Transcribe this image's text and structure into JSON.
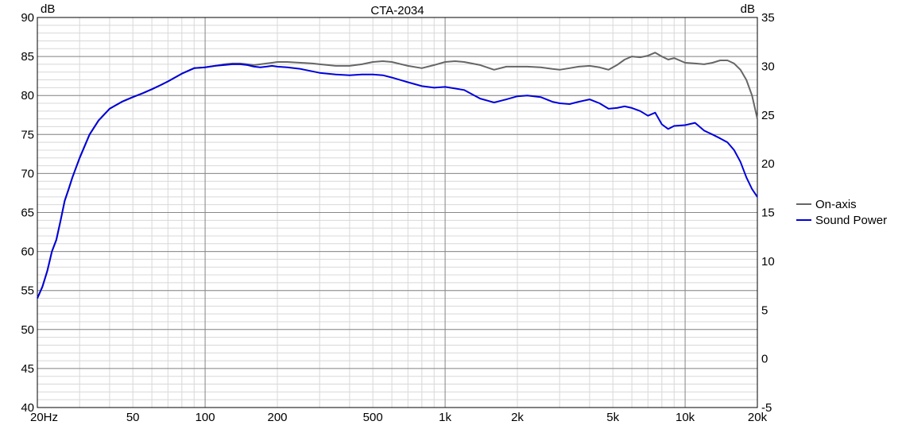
{
  "chart_data": {
    "type": "line",
    "title": "CTA-2034",
    "y_left_unit": "dB",
    "y_right_unit": "dB",
    "x_scale": "log",
    "xlim": [
      20,
      20000
    ],
    "ylim_left": [
      40,
      90
    ],
    "ylim_right": [
      -5,
      35
    ],
    "x_ticks": [
      {
        "value": 20,
        "label": "20Hz"
      },
      {
        "value": 50,
        "label": "50"
      },
      {
        "value": 100,
        "label": "100"
      },
      {
        "value": 200,
        "label": "200"
      },
      {
        "value": 500,
        "label": "500"
      },
      {
        "value": 1000,
        "label": "1k"
      },
      {
        "value": 2000,
        "label": "2k"
      },
      {
        "value": 5000,
        "label": "5k"
      },
      {
        "value": 10000,
        "label": "10k"
      },
      {
        "value": 20000,
        "label": "20k"
      }
    ],
    "y_left_ticks": [
      90,
      85,
      80,
      75,
      70,
      65,
      60,
      55,
      50,
      45,
      40
    ],
    "y_right_ticks": [
      35,
      30,
      25,
      20,
      15,
      10,
      5,
      0,
      -5
    ],
    "grid": true,
    "legend_position": "right",
    "series": [
      {
        "name": "On-axis",
        "color": "#666666",
        "x": [
          20,
          21,
          22,
          23,
          24,
          25,
          26,
          27,
          28,
          30,
          33,
          36,
          40,
          45,
          50,
          55,
          60,
          65,
          70,
          80,
          90,
          100,
          110,
          120,
          130,
          140,
          150,
          160,
          170,
          180,
          190,
          200,
          220,
          250,
          280,
          300,
          350,
          400,
          450,
          500,
          550,
          600,
          700,
          800,
          900,
          1000,
          1100,
          1200,
          1400,
          1600,
          1800,
          2000,
          2200,
          2500,
          2800,
          3000,
          3300,
          3600,
          4000,
          4400,
          4800,
          5200,
          5600,
          6000,
          6500,
          7000,
          7500,
          8000,
          8500,
          9000,
          10000,
          11000,
          12000,
          13000,
          14000,
          15000,
          16000,
          17000,
          18000,
          19000,
          20000
        ],
        "y": [
          54.0,
          55.5,
          57.5,
          60.0,
          61.5,
          64.0,
          66.5,
          68.0,
          69.5,
          72.0,
          75.0,
          76.8,
          78.3,
          79.2,
          79.8,
          80.3,
          80.8,
          81.3,
          81.8,
          82.8,
          83.5,
          83.6,
          83.8,
          84.0,
          84.1,
          84.1,
          84.0,
          83.9,
          84.0,
          84.1,
          84.2,
          84.3,
          84.3,
          84.2,
          84.1,
          84.0,
          83.8,
          83.8,
          84.0,
          84.3,
          84.4,
          84.3,
          83.8,
          83.5,
          83.9,
          84.3,
          84.4,
          84.3,
          83.9,
          83.3,
          83.7,
          83.7,
          83.7,
          83.6,
          83.4,
          83.3,
          83.5,
          83.7,
          83.8,
          83.6,
          83.3,
          83.9,
          84.6,
          85.0,
          84.9,
          85.1,
          85.5,
          85.0,
          84.6,
          84.8,
          84.2,
          84.1,
          84.0,
          84.2,
          84.5,
          84.5,
          84.1,
          83.3,
          82.0,
          80.0,
          77.0
        ]
      },
      {
        "name": "Sound Power",
        "color": "#0000dd",
        "x": [
          20,
          21,
          22,
          23,
          24,
          25,
          26,
          27,
          28,
          30,
          33,
          36,
          40,
          45,
          50,
          55,
          60,
          65,
          70,
          80,
          90,
          100,
          110,
          120,
          130,
          140,
          150,
          160,
          170,
          180,
          190,
          200,
          220,
          250,
          280,
          300,
          350,
          400,
          450,
          500,
          550,
          600,
          700,
          800,
          900,
          1000,
          1100,
          1200,
          1400,
          1600,
          1800,
          2000,
          2200,
          2500,
          2800,
          3000,
          3300,
          3600,
          4000,
          4400,
          4800,
          5200,
          5600,
          6000,
          6500,
          7000,
          7500,
          8000,
          8500,
          9000,
          10000,
          11000,
          12000,
          13000,
          14000,
          15000,
          16000,
          17000,
          18000,
          19000,
          20000
        ],
        "y": [
          54.0,
          55.5,
          57.5,
          60.0,
          61.5,
          64.0,
          66.5,
          68.0,
          69.5,
          72.0,
          75.0,
          76.8,
          78.3,
          79.2,
          79.8,
          80.3,
          80.8,
          81.3,
          81.8,
          82.8,
          83.5,
          83.6,
          83.8,
          83.9,
          84.0,
          84.0,
          83.9,
          83.7,
          83.6,
          83.7,
          83.8,
          83.7,
          83.6,
          83.4,
          83.1,
          82.9,
          82.7,
          82.6,
          82.7,
          82.7,
          82.6,
          82.3,
          81.7,
          81.2,
          81.0,
          81.1,
          80.9,
          80.7,
          79.6,
          79.1,
          79.5,
          79.9,
          80.0,
          79.8,
          79.2,
          79.0,
          78.9,
          79.2,
          79.5,
          79.0,
          78.3,
          78.4,
          78.6,
          78.4,
          78.0,
          77.4,
          77.8,
          76.3,
          75.7,
          76.1,
          76.2,
          76.5,
          75.5,
          75.0,
          74.5,
          74.0,
          73.0,
          71.5,
          69.5,
          68.0,
          67.0
        ]
      }
    ]
  }
}
